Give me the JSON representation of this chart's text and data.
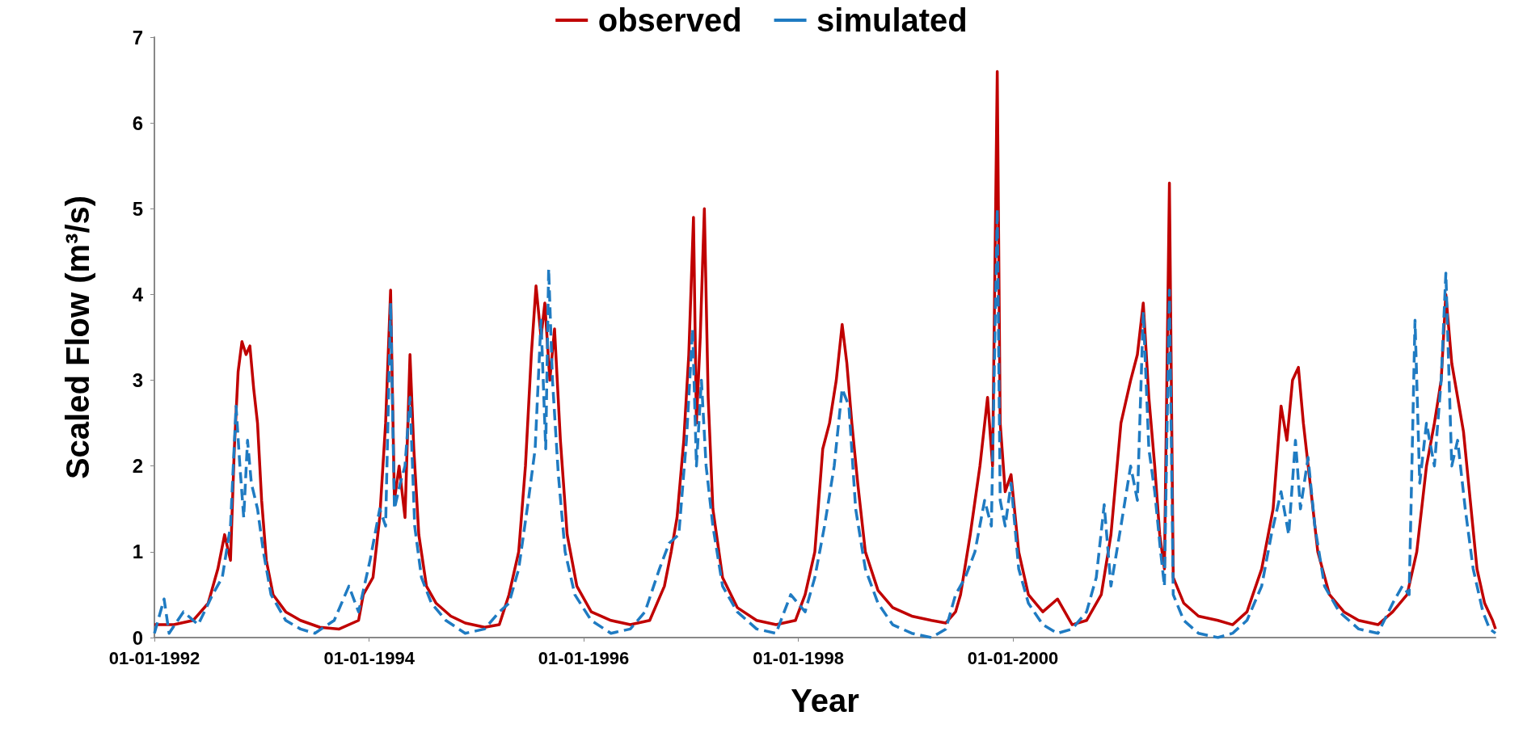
{
  "chart_data": {
    "type": "line",
    "xlabel": "Year",
    "ylabel": "Scaled Flow (m³/s)",
    "legend": "top",
    "grid": false,
    "marker": "none",
    "xlim": [
      "1992-01-01",
      "2004-07-01"
    ],
    "xticks": [
      {
        "value": "1992-01-01",
        "label": "01-01-1992"
      },
      {
        "value": "1994-01-01",
        "label": "01-01-1994"
      },
      {
        "value": "1996-01-01",
        "label": "01-01-1996"
      },
      {
        "value": "1998-01-01",
        "label": "01-01-1998"
      },
      {
        "value": "2000-01-01",
        "label": "01-01-2000"
      }
    ],
    "ylim": [
      0,
      7
    ],
    "yticks": [
      0,
      1,
      2,
      3,
      4,
      5,
      6,
      7
    ],
    "series": [
      {
        "name": "observed",
        "color": "#c00000",
        "line_style": "solid",
        "x": [
          "1992-01-01",
          "1992-03-07",
          "1992-05-12",
          "1992-07-02",
          "1992-08-04",
          "1992-08-27",
          "1992-09-16",
          "1992-09-29",
          "1992-10-12",
          "1992-10-25",
          "1992-11-08",
          "1992-11-21",
          "1992-12-04",
          "1992-12-17",
          "1992-12-31",
          "1993-01-16",
          "1993-02-08",
          "1993-03-23",
          "1993-05-12",
          "1993-07-17",
          "1993-09-21",
          "1993-11-26",
          "1993-12-12",
          "1994-01-14",
          "1994-02-06",
          "1994-02-26",
          "1994-03-15",
          "1994-03-28",
          "1994-04-13",
          "1994-05-03",
          "1994-05-20",
          "1994-06-02",
          "1994-06-19",
          "1994-07-15",
          "1994-08-17",
          "1994-10-06",
          "1994-11-24",
          "1995-01-29",
          "1995-03-20",
          "1995-04-22",
          "1995-05-25",
          "1995-06-17",
          "1995-07-07",
          "1995-07-23",
          "1995-08-09",
          "1995-08-22",
          "1995-09-08",
          "1995-09-24",
          "1995-10-14",
          "1995-11-06",
          "1995-12-09",
          "1996-01-27",
          "1996-04-03",
          "1996-06-08",
          "1996-08-13",
          "1996-10-02",
          "1996-10-25",
          "1996-11-14",
          "1996-12-07",
          "1996-12-24",
          "1997-01-09",
          "1997-01-19",
          "1997-02-01",
          "1997-02-15",
          "1997-02-28",
          "1997-03-16",
          "1997-04-18",
          "1997-06-07",
          "1997-08-12",
          "1997-10-17",
          "1997-12-22",
          "1998-01-24",
          "1998-02-26",
          "1998-03-25",
          "1998-04-17",
          "1998-05-10",
          "1998-05-30",
          "1998-06-15",
          "1998-07-02",
          "1998-07-22",
          "1998-08-17",
          "1998-09-29",
          "1998-11-18",
          "1999-01-22",
          "1999-03-30",
          "1999-05-18",
          "1999-06-20",
          "1999-07-07",
          "1999-08-09",
          "1999-09-11",
          "1999-10-07",
          "1999-10-24",
          "1999-11-09",
          "1999-11-19",
          "1999-12-06",
          "1999-12-26",
          "2000-01-21",
          "2000-02-23",
          "2000-04-12",
          "2000-06-01",
          "2000-07-21",
          "2000-09-08",
          "2000-10-28",
          "2000-11-30",
          "2001-01-03",
          "2001-02-05",
          "2001-02-28",
          "2001-03-20",
          "2001-04-08",
          "2001-04-28",
          "2001-05-15",
          "2001-05-31",
          "2001-06-17",
          "2001-06-30",
          "2001-08-05",
          "2001-09-24",
          "2001-11-29",
          "2002-01-18",
          "2002-03-08",
          "2002-04-27",
          "2002-06-05",
          "2002-07-02",
          "2002-07-22",
          "2002-08-10",
          "2002-08-30",
          "2002-09-16",
          "2002-10-09",
          "2002-11-04",
          "2002-12-14",
          "2003-02-01",
          "2003-03-23",
          "2003-05-28",
          "2003-07-17",
          "2003-09-04",
          "2003-10-07",
          "2003-11-09",
          "2003-12-06",
          "2003-12-29",
          "2004-01-14",
          "2004-02-03",
          "2004-02-23",
          "2004-03-14",
          "2004-04-06",
          "2004-04-29",
          "2004-05-25",
          "2004-06-21",
          "2004-07-01"
        ],
        "values": [
          0.15,
          0.15,
          0.2,
          0.4,
          0.8,
          1.2,
          0.9,
          2.2,
          3.1,
          3.45,
          3.3,
          3.4,
          2.9,
          2.5,
          1.6,
          0.9,
          0.5,
          0.3,
          0.2,
          0.12,
          0.1,
          0.2,
          0.5,
          0.7,
          1.4,
          2.5,
          4.05,
          1.6,
          2,
          1.4,
          3.3,
          2.2,
          1.2,
          0.6,
          0.4,
          0.25,
          0.17,
          0.12,
          0.15,
          0.5,
          1,
          2,
          3.3,
          4.1,
          3.5,
          3.9,
          3,
          3.6,
          2.3,
          1.2,
          0.6,
          0.3,
          0.2,
          0.15,
          0.2,
          0.6,
          1,
          1.4,
          2.3,
          3.3,
          4.9,
          2.5,
          3.5,
          5,
          2.8,
          1.5,
          0.7,
          0.35,
          0.2,
          0.15,
          0.2,
          0.5,
          1,
          2.2,
          2.5,
          3,
          3.65,
          3.2,
          2.5,
          1.8,
          1,
          0.55,
          0.35,
          0.25,
          0.2,
          0.17,
          0.3,
          0.5,
          1.2,
          2,
          2.8,
          2,
          6.6,
          2.5,
          1.7,
          1.9,
          1,
          0.5,
          0.3,
          0.45,
          0.15,
          0.2,
          0.5,
          1.2,
          2.5,
          3,
          3.3,
          3.9,
          2.8,
          2,
          1.2,
          0.8,
          5.3,
          0.7,
          0.4,
          0.25,
          0.2,
          0.15,
          0.3,
          0.8,
          1.5,
          2.7,
          2.3,
          3,
          3.15,
          2.5,
          1.8,
          1,
          0.5,
          0.3,
          0.2,
          0.15,
          0.3,
          0.5,
          1,
          2,
          2.5,
          3,
          4,
          3.2,
          2.8,
          2.4,
          1.6,
          0.8,
          0.4,
          0.2,
          0.1
        ]
      },
      {
        "name": "simulated",
        "color": "#1f7bc2",
        "line_style": "dashed",
        "x": [
          "1992-01-01",
          "1992-02-03",
          "1992-02-20",
          "1992-04-09",
          "1992-05-29",
          "1992-07-17",
          "1992-08-19",
          "1992-09-16",
          "1992-10-05",
          "1992-10-18",
          "1992-10-31",
          "1992-11-13",
          "1992-11-26",
          "1992-12-17",
          "1993-01-06",
          "1993-02-01",
          "1993-03-23",
          "1993-05-12",
          "1993-06-30",
          "1993-09-04",
          "1993-10-24",
          "1993-11-26",
          "1994-01-04",
          "1994-02-06",
          "1994-02-26",
          "1994-03-15",
          "1994-03-28",
          "1994-04-17",
          "1994-05-03",
          "1994-05-20",
          "1994-06-05",
          "1994-06-28",
          "1994-08-01",
          "1994-09-19",
          "1994-11-24",
          "1995-01-29",
          "1995-03-20",
          "1995-04-22",
          "1995-05-25",
          "1995-06-27",
          "1995-07-20",
          "1995-08-09",
          "1995-08-25",
          "1995-09-04",
          "1995-09-17",
          "1995-10-07",
          "1995-10-30",
          "1995-12-02",
          "1996-01-27",
          "1996-04-03",
          "1996-06-08",
          "1996-07-28",
          "1996-09-15",
          "1996-10-18",
          "1996-11-20",
          "1996-12-16",
          "1997-01-06",
          "1997-01-19",
          "1997-02-05",
          "1997-02-21",
          "1997-03-16",
          "1997-04-18",
          "1997-06-07",
          "1997-08-12",
          "1997-10-17",
          "1997-12-06",
          "1998-01-24",
          "1998-02-26",
          "1998-03-31",
          "1998-05-03",
          "1998-05-30",
          "1998-06-22",
          "1998-07-15",
          "1998-08-17",
          "1998-09-29",
          "1998-11-18",
          "1999-01-22",
          "1999-03-30",
          "1999-05-18",
          "1999-06-20",
          "1999-07-23",
          "1999-08-25",
          "1999-09-27",
          "1999-10-20",
          "1999-11-09",
          "1999-11-19",
          "1999-12-06",
          "1999-12-26",
          "2000-01-21",
          "2000-02-23",
          "2000-04-12",
          "2000-06-01",
          "2000-07-21",
          "2000-09-08",
          "2000-10-11",
          "2000-11-07",
          "2000-11-30",
          "2001-01-03",
          "2001-02-05",
          "2001-02-28",
          "2001-03-20",
          "2001-04-08",
          "2001-04-28",
          "2001-05-18",
          "2001-05-31",
          "2001-06-17",
          "2001-06-30",
          "2001-08-05",
          "2001-09-24",
          "2001-11-29",
          "2002-01-18",
          "2002-03-08",
          "2002-04-27",
          "2002-05-30",
          "2002-07-02",
          "2002-07-28",
          "2002-08-20",
          "2002-09-06",
          "2002-10-02",
          "2002-10-25",
          "2002-11-27",
          "2003-01-16",
          "2003-03-23",
          "2003-05-28",
          "2003-07-17",
          "2003-08-19",
          "2003-09-11",
          "2003-10-01",
          "2003-10-17",
          "2003-11-09",
          "2003-12-06",
          "2003-12-29",
          "2004-01-14",
          "2004-02-03",
          "2004-02-23",
          "2004-03-20",
          "2004-04-16",
          "2004-05-19",
          "2004-06-11",
          "2004-07-01"
        ],
        "values": [
          0.05,
          0.45,
          0.05,
          0.3,
          0.15,
          0.5,
          0.7,
          1.3,
          2.7,
          2,
          1.4,
          2.3,
          1.8,
          1.5,
          1,
          0.5,
          0.2,
          0.1,
          0.05,
          0.2,
          0.6,
          0.3,
          0.9,
          1.5,
          1.3,
          3.9,
          1.5,
          1.8,
          2,
          2.8,
          1.3,
          0.7,
          0.4,
          0.2,
          0.05,
          0.1,
          0.3,
          0.4,
          0.8,
          1.6,
          2.2,
          3.7,
          2.2,
          4.3,
          3,
          1.9,
          1,
          0.5,
          0.2,
          0.05,
          0.1,
          0.3,
          0.8,
          1.1,
          1.2,
          2.3,
          3.6,
          2,
          3,
          2,
          1.3,
          0.6,
          0.3,
          0.1,
          0.05,
          0.5,
          0.3,
          0.7,
          1.3,
          2,
          2.9,
          2.7,
          1.5,
          0.8,
          0.4,
          0.15,
          0.05,
          0,
          0.1,
          0.5,
          0.7,
          1,
          1.6,
          1.3,
          5,
          1.6,
          1.3,
          1.8,
          0.8,
          0.4,
          0.15,
          0.05,
          0.1,
          0.3,
          0.7,
          1.55,
          0.6,
          1.3,
          2,
          1.6,
          3.8,
          2.2,
          1.7,
          1,
          0.6,
          4.05,
          0.5,
          0.2,
          0.05,
          0,
          0.05,
          0.2,
          0.6,
          1.2,
          1.7,
          1.2,
          2.3,
          1.5,
          2.1,
          1.3,
          0.6,
          0.3,
          0.1,
          0.05,
          0.4,
          0.6,
          0.5,
          3.7,
          1.8,
          2.5,
          2,
          3,
          4.25,
          2,
          2.3,
          1.5,
          0.8,
          0.3,
          0.1,
          0.05
        ]
      }
    ]
  }
}
